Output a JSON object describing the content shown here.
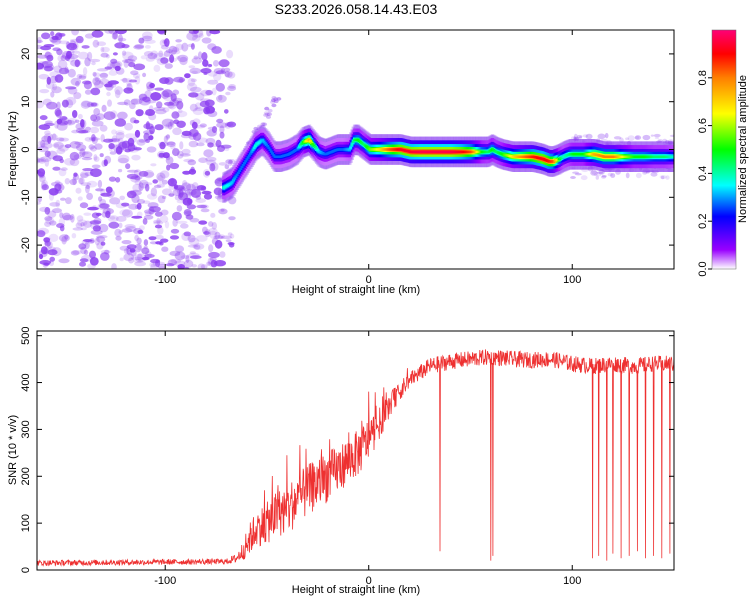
{
  "title": "S233.2026.058.14.43.E03",
  "colors": {
    "line": "#ee3030",
    "speckle": "#8a3cf0",
    "cmap": [
      "#ffffff",
      "#9900ff",
      "#0000ff",
      "#00ffff",
      "#00ff00",
      "#ffff00",
      "#ff7f00",
      "#ff0000",
      "#ff0077"
    ]
  },
  "chart_data": [
    {
      "type": "heatmap",
      "title": "S233.2026.058.14.43.E03",
      "xlabel": "Height of straight line (km)",
      "ylabel": "Frequency (Hz)",
      "xlim": [
        -163,
        150
      ],
      "ylim": [
        -25,
        25
      ],
      "xticks": [
        -100,
        0,
        100
      ],
      "xtick_labels": [
        "-100",
        "0",
        "100"
      ],
      "yticks": [
        -20,
        -10,
        0,
        10,
        20
      ],
      "ytick_labels": [
        "-20",
        "-10",
        "0",
        "10",
        "20"
      ],
      "noise_region_x": [
        -163,
        -70
      ],
      "ridge": {
        "x": [
          -72,
          -68,
          -65,
          -62,
          -59,
          -56,
          -53,
          -50,
          -47,
          -44,
          -40,
          -36,
          -33,
          -30,
          -28,
          -25,
          -22,
          -19,
          -16,
          -13,
          -10,
          -8,
          -6,
          -3,
          0,
          5,
          10,
          15,
          20,
          25,
          30,
          35,
          40,
          45,
          50,
          55,
          58,
          60,
          62,
          65,
          70,
          75,
          80,
          85,
          88,
          90,
          93,
          95,
          98,
          100,
          105,
          110,
          115,
          120,
          125,
          130,
          135,
          140,
          145,
          149
        ],
        "y": [
          -8,
          -7,
          -5,
          -3,
          -1,
          1,
          2,
          0.5,
          -1.5,
          -1.5,
          -1,
          0,
          1.5,
          2,
          1,
          -0.5,
          -1,
          -0.5,
          0,
          0,
          0,
          2,
          2,
          1,
          0,
          0,
          0,
          0,
          -0.5,
          -0.5,
          -0.5,
          -0.5,
          -0.5,
          -0.5,
          -0.5,
          -0.5,
          -0.5,
          0,
          -0.5,
          -1,
          -1.5,
          -1.5,
          -1.5,
          -2,
          -2.5,
          -2.5,
          -2,
          -1.5,
          -1,
          -1,
          -1,
          -1,
          -1.5,
          -1.5,
          -1.5,
          -1.5,
          -1.5,
          -1.5,
          -1.5,
          -1.5
        ],
        "amplitude": [
          0.4,
          0.35,
          0.3,
          0.3,
          0.3,
          0.4,
          0.35,
          0.3,
          0.3,
          0.3,
          0.3,
          0.3,
          0.5,
          0.7,
          0.5,
          0.35,
          0.3,
          0.3,
          0.3,
          0.3,
          0.35,
          0.45,
          0.5,
          0.45,
          0.55,
          0.65,
          0.8,
          0.9,
          0.92,
          0.95,
          0.95,
          0.95,
          0.95,
          0.9,
          0.8,
          0.5,
          0.45,
          0.5,
          0.45,
          0.5,
          0.65,
          0.75,
          0.85,
          0.9,
          0.85,
          0.8,
          0.5,
          0.4,
          0.45,
          0.5,
          0.5,
          0.7,
          0.75,
          0.75,
          0.6,
          0.5,
          0.5,
          0.45,
          0.45,
          0.4
        ]
      },
      "colorbar": {
        "label": "Normalized spectral amplitude",
        "range": [
          0,
          1
        ],
        "ticks": [
          0.0,
          0.2,
          0.4,
          0.6,
          0.8
        ],
        "tick_labels": [
          "0.0",
          "0.2",
          "0.4",
          "0.6",
          "0.8"
        ]
      }
    },
    {
      "type": "line",
      "xlabel": "Height of straight line (km)",
      "ylabel": "SNR (10 * v/v)",
      "xlim": [
        -163,
        150
      ],
      "ylim": [
        0,
        510
      ],
      "xticks": [
        -100,
        0,
        100
      ],
      "xtick_labels": [
        "-100",
        "0",
        "100"
      ],
      "yticks": [
        0,
        100,
        200,
        300,
        400,
        500
      ],
      "ytick_labels": [
        "0",
        "100",
        "200",
        "300",
        "400",
        "500"
      ],
      "series": [
        {
          "name": "SNR",
          "envelope_x": [
            -163,
            -70,
            -65,
            -62,
            -58,
            -55,
            -50,
            -45,
            -40,
            -35,
            -30,
            -25,
            -20,
            -15,
            -10,
            -5,
            0,
            5,
            10,
            15,
            20,
            25,
            30,
            40,
            50,
            60,
            70,
            80,
            90,
            100,
            110,
            120,
            130,
            140,
            150
          ],
          "envelope_mean": [
            15,
            18,
            25,
            40,
            70,
            90,
            100,
            120,
            130,
            150,
            170,
            185,
            200,
            215,
            235,
            250,
            280,
            310,
            350,
            380,
            405,
            420,
            435,
            445,
            450,
            455,
            450,
            448,
            450,
            440,
            435,
            440,
            435,
            440,
            440
          ],
          "envelope_spread": [
            12,
            12,
            20,
            40,
            70,
            80,
            90,
            100,
            110,
            110,
            110,
            110,
            110,
            100,
            100,
            100,
            90,
            70,
            50,
            40,
            35,
            35,
            35,
            35,
            35,
            35,
            35,
            35,
            35,
            35,
            35,
            35,
            35,
            35,
            35
          ],
          "dips": [
            {
              "x": 35,
              "y": 40
            },
            {
              "x": 60,
              "y": 20
            },
            {
              "x": 61,
              "y": 30
            },
            {
              "x": 110,
              "y": 25
            },
            {
              "x": 113,
              "y": 30
            },
            {
              "x": 117,
              "y": 20
            },
            {
              "x": 120,
              "y": 35
            },
            {
              "x": 124,
              "y": 25
            },
            {
              "x": 128,
              "y": 30
            },
            {
              "x": 132,
              "y": 40
            },
            {
              "x": 136,
              "y": 25
            },
            {
              "x": 140,
              "y": 30
            },
            {
              "x": 144,
              "y": 25
            },
            {
              "x": 148,
              "y": 35
            }
          ]
        }
      ]
    }
  ]
}
